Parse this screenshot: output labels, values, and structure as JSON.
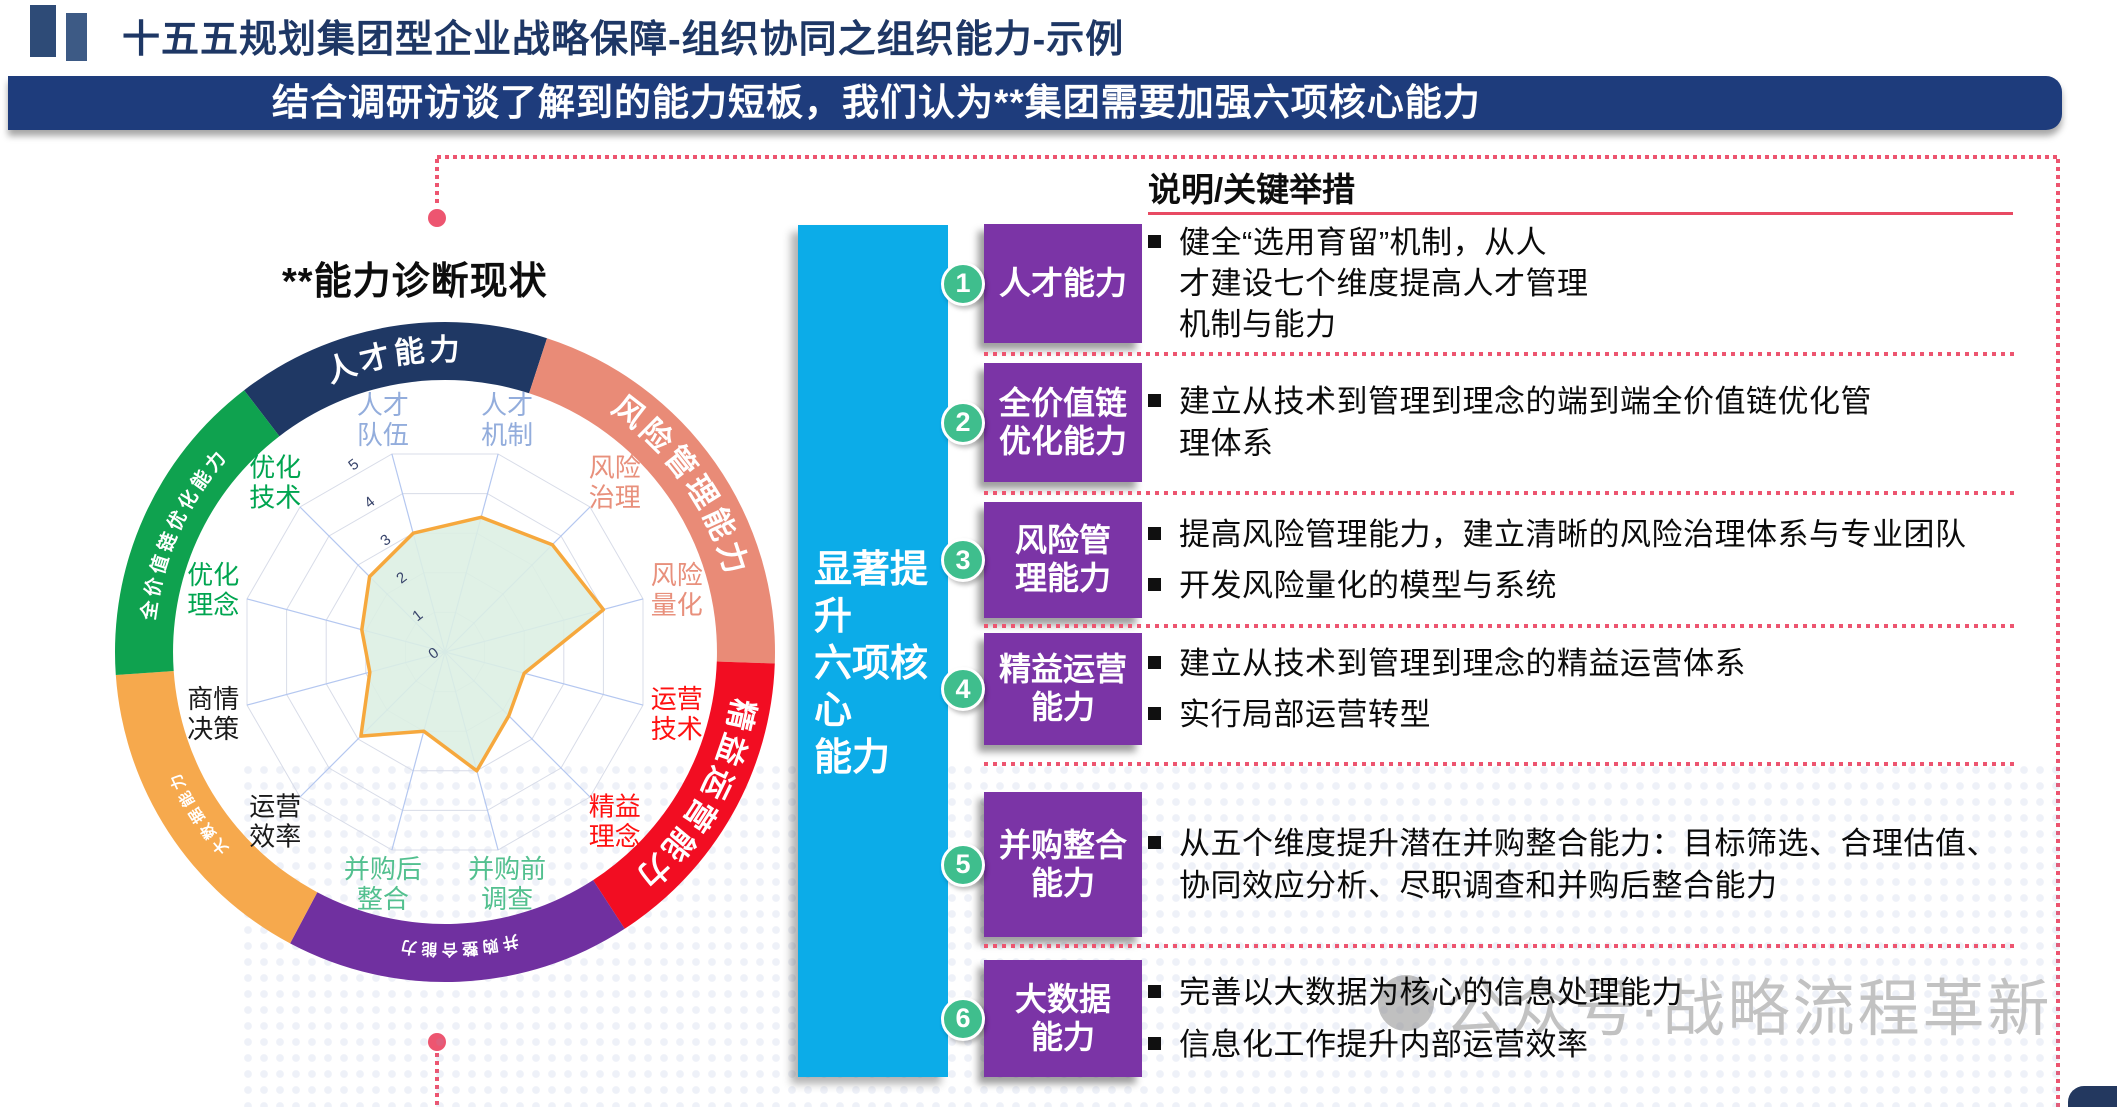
{
  "page": {
    "title": "十五五规划集团型企业战略保障-组织协同之组织能力-示例",
    "banner": "结合调研访谈了解到的能力短板，我们认为**集团需要加强六项核心能力"
  },
  "left_chart": {
    "title": "**能力诊断现状",
    "ring_segments": [
      {
        "label": "人才能力",
        "color": "#1F3864",
        "start": -37.5,
        "end": 18,
        "font": 30
      },
      {
        "label": "风险管理能力",
        "color": "#E98B77",
        "start": 18,
        "end": 92,
        "font": 31
      },
      {
        "label": "精益运营能力",
        "color": "#F20D22",
        "start": 92,
        "end": 147,
        "font": 31
      },
      {
        "label": "并购整合能力",
        "color": "#7030A0",
        "start": 147,
        "end": 208,
        "font": 16
      },
      {
        "label": "大数据能力",
        "color": "#F6A94D",
        "start": 208,
        "end": 266,
        "font": 15
      },
      {
        "label": "全价值链优化能力",
        "color": "#0FA24F",
        "start": 266,
        "end": 322.5,
        "font": 19
      }
    ],
    "radar_axes": [
      {
        "label": "人才\n队伍",
        "color": "#93ADDC",
        "value": 3.0
      },
      {
        "label": "人才\n机制",
        "color": "#93ADDC",
        "value": 3.4
      },
      {
        "label": "风险\n治理",
        "color": "#E8907C",
        "value": 3.7
      },
      {
        "label": "风险\n量化",
        "color": "#E8907C",
        "value": 4.0
      },
      {
        "label": "运营\n技术",
        "color": "#FF1111",
        "value": 2.0
      },
      {
        "label": "精益\n理念",
        "color": "#FF1111",
        "value": 2.2
      },
      {
        "label": "并购前\n调查",
        "color": "#53C08F",
        "value": 3.0
      },
      {
        "label": "并购后\n整合",
        "color": "#53C08F",
        "value": 2.0
      },
      {
        "label": "运营\n效率",
        "color": "#1A1A1A",
        "value": 2.9
      },
      {
        "label": "商情\n决策",
        "color": "#1A1A1A",
        "value": 1.9
      },
      {
        "label": "优化\n理念",
        "color": "#00A550",
        "value": 2.1
      },
      {
        "label": "优化\n技术",
        "color": "#00A550",
        "value": 2.6
      }
    ],
    "scale": {
      "min": 0,
      "max": 5,
      "ticks": [
        "0",
        "1",
        "2",
        "3",
        "4",
        "5"
      ]
    },
    "series_style": {
      "stroke": "#F6A83D",
      "fill": "#DCEFE3"
    }
  },
  "middle_bar": {
    "text": "显著提升\n六项核心\n能力"
  },
  "right_panel": {
    "header": "说明/关键举措",
    "rows": [
      {
        "num": "1",
        "label": "人才能力",
        "bullets": [
          "健全“选用育留”机制，从人\n才建设七个维度提高人才管理\n机制与能力"
        ]
      },
      {
        "num": "2",
        "label": "全价值链\n优化能力",
        "bullets": [
          "建立从技术到管理到理念的端到端全价值链优化管\n理体系"
        ]
      },
      {
        "num": "3",
        "label": "风险管\n理能力",
        "bullets": [
          "提高风险管理能力，建立清晰的风险治理体系与专业团队",
          "开发风险量化的模型与系统"
        ]
      },
      {
        "num": "4",
        "label": "精益运营\n能力",
        "bullets": [
          "建立从技术到管理到理念的精益运营体系",
          "实行局部运营转型"
        ]
      },
      {
        "num": "5",
        "label": "并购整合\n能力",
        "bullets": [
          "从五个维度提升潜在并购整合能力：目标筛选、合理估值、\n协同效应分析、尽职调查和并购后整合能力"
        ]
      },
      {
        "num": "6",
        "label": "大数据\n能力",
        "bullets": [
          "完善以大数据为核心的信息处理能力",
          "信息化工作提升内部运营效率"
        ]
      }
    ]
  },
  "watermark": {
    "text": "公众号·战略流程革新"
  },
  "chart_data": {
    "type": "radar",
    "title": "**能力诊断现状",
    "categories": [
      "人才队伍",
      "人才机制",
      "风险治理",
      "风险量化",
      "运营技术",
      "精益理念",
      "并购前调查",
      "并购后整合",
      "运营效率",
      "商情决策",
      "优化理念",
      "优化技术"
    ],
    "values": [
      3.0,
      3.4,
      3.7,
      4.0,
      2.0,
      2.2,
      3.0,
      2.0,
      2.9,
      1.9,
      2.1,
      2.6
    ],
    "axis_range": [
      0,
      5
    ],
    "ring_groups": [
      "人才能力",
      "风险管理能力",
      "精益运营能力",
      "并购整合能力",
      "大数据能力",
      "全价值链优化能力"
    ],
    "grid": true,
    "legend_position": "none"
  },
  "colors": {
    "accent_dot": "#ED5570",
    "banner_bg": "#1E3C7C",
    "row_box": "#7B34A6",
    "num_circle": "#3FBE8D",
    "cyan_bar": "#0CACE8",
    "underline": "#E84A63"
  }
}
